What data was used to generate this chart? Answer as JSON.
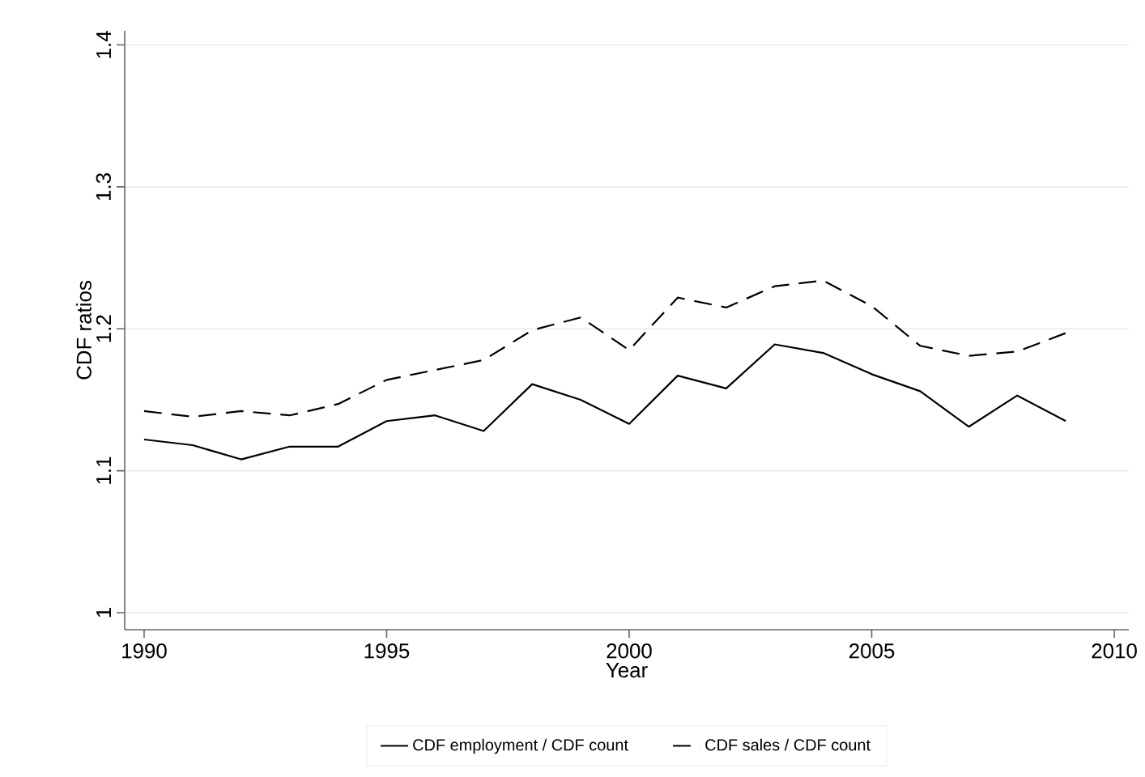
{
  "chart_data": {
    "type": "line",
    "xlabel": "Year",
    "ylabel": "CDF ratios",
    "x": [
      1990,
      1991,
      1992,
      1993,
      1994,
      1995,
      1996,
      1997,
      1998,
      1999,
      2000,
      2001,
      2002,
      2003,
      2004,
      2005,
      2006,
      2007,
      2008,
      2009
    ],
    "series": [
      {
        "name": "CDF employment / CDF count",
        "color": "#000000",
        "line_style": "solid",
        "values": [
          1.122,
          1.118,
          1.108,
          1.117,
          1.117,
          1.135,
          1.139,
          1.128,
          1.161,
          1.15,
          1.133,
          1.167,
          1.158,
          1.189,
          1.183,
          1.168,
          1.156,
          1.131,
          1.153,
          1.135
        ]
      },
      {
        "name": "CDF sales / CDF count",
        "color": "#000000",
        "line_style": "dashed",
        "values": [
          1.142,
          1.138,
          1.142,
          1.139,
          1.147,
          1.164,
          1.171,
          1.178,
          1.199,
          1.208,
          1.185,
          1.222,
          1.215,
          1.23,
          1.234,
          1.216,
          1.188,
          1.181,
          1.184,
          1.197
        ]
      }
    ],
    "xlim": [
      1989.6,
      2010.3
    ],
    "ylim": [
      0.988,
      1.41
    ],
    "xticks": [
      1990,
      1995,
      2000,
      2005,
      2010
    ],
    "yticks": [
      1,
      1.1,
      1.2,
      1.3,
      1.4
    ],
    "grid": "y",
    "legend": "bottom",
    "marker": "none"
  }
}
